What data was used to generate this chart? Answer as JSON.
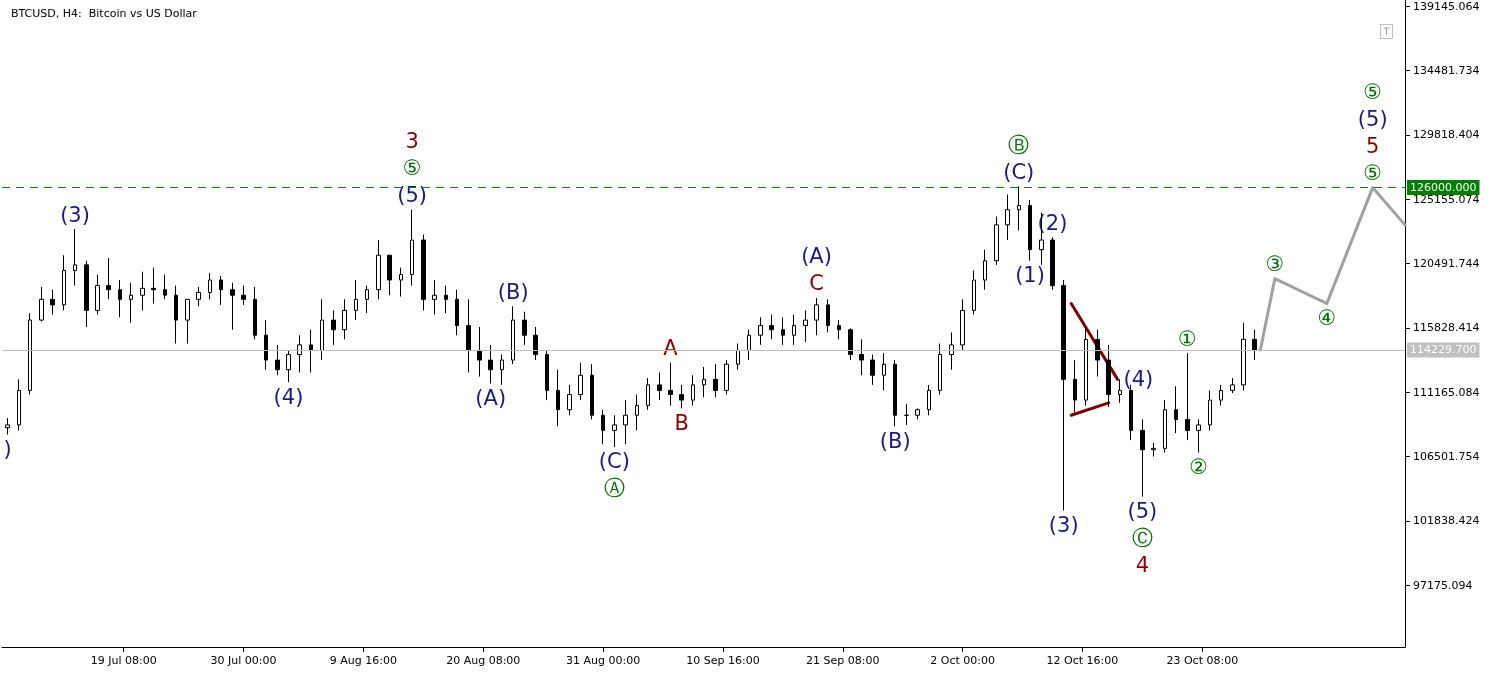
{
  "chart_data": {
    "type": "candlestick",
    "title": "BTCUSD, H4:  Bitcoin vs US Dollar",
    "xlim": [
      "--07-08T12:00",
      "--11-10T09:00"
    ],
    "xticks": [
      {
        "value": "--07-19T08:00",
        "label": "19 Jul 08:00"
      },
      {
        "value": "--07-30T00:00",
        "label": "30 Jul 00:00"
      },
      {
        "value": "--08-09T16:00",
        "label": "9 Aug 16:00"
      },
      {
        "value": "--08-20T08:00",
        "label": "20 Aug 08:00"
      },
      {
        "value": "--08-31T00:00",
        "label": "31 Aug 00:00"
      },
      {
        "value": "--09-10T16:00",
        "label": "10 Sep 16:00"
      },
      {
        "value": "--09-21T08:00",
        "label": "21 Sep 08:00"
      },
      {
        "value": "--10-02T00:00",
        "label": "2 Oct 00:00"
      },
      {
        "value": "--10-12T16:00",
        "label": "12 Oct 16:00"
      },
      {
        "value": "--10-23T08:00",
        "label": "23 Oct 08:00"
      }
    ],
    "ylim": [
      92700,
      139600
    ],
    "yticks": [
      97175.094,
      101838.424,
      106501.754,
      111165.084,
      115828.414,
      120491.744,
      125155.074,
      129818.404,
      134481.734,
      139145.064
    ],
    "marker": "none",
    "series": [
      {
        "color": "#000000",
        "x": [
          "--07-09",
          "--07-10",
          "--07-11",
          "--07-12",
          "--07-13",
          "--07-14",
          "--07-15",
          "--07-16",
          "--07-17",
          "--07-18",
          "--07-19",
          "--07-20",
          "--07-21",
          "--07-22",
          "--07-23",
          "--07-24",
          "--07-25",
          "--07-26",
          "--07-27",
          "--07-28",
          "--07-29",
          "--07-30",
          "--07-31",
          "--08-01",
          "--08-02",
          "--08-03",
          "--08-04",
          "--08-05",
          "--08-06",
          "--08-07",
          "--08-08",
          "--08-09",
          "--08-10",
          "--08-11",
          "--08-12",
          "--08-13",
          "--08-14",
          "--08-15",
          "--08-16",
          "--08-17",
          "--08-18",
          "--08-19",
          "--08-20",
          "--08-21",
          "--08-22",
          "--08-23",
          "--08-24",
          "--08-25",
          "--08-26",
          "--08-27",
          "--08-28",
          "--08-29",
          "--08-30",
          "--08-31",
          "--09-01",
          "--09-02",
          "--09-03",
          "--09-04",
          "--09-05",
          "--09-06",
          "--09-07",
          "--09-08",
          "--09-09",
          "--09-10",
          "--09-11",
          "--09-12",
          "--09-13",
          "--09-14",
          "--09-15",
          "--09-16",
          "--09-17",
          "--09-18",
          "--09-19",
          "--09-20",
          "--09-21",
          "--09-22",
          "--09-23",
          "--09-24",
          "--09-25",
          "--09-26",
          "--09-27",
          "--09-28",
          "--09-29",
          "--09-30",
          "--10-01",
          "--10-02",
          "--10-03",
          "--10-04",
          "--10-05",
          "--10-06",
          "--10-07",
          "--10-08",
          "--10-09",
          "--10-10",
          "--10-11",
          "--10-12",
          "--10-13",
          "--10-14",
          "--10-15",
          "--10-16",
          "--10-17",
          "--10-18",
          "--10-19",
          "--10-20",
          "--10-21",
          "--10-22",
          "--10-23",
          "--10-24",
          "--10-25",
          "--10-26",
          "--10-27",
          "--10-28"
        ],
        "ohlc": [
          [
            108600,
            109300,
            108100,
            108800
          ],
          [
            108800,
            112100,
            108400,
            111300
          ],
          [
            111300,
            116900,
            111000,
            116400
          ],
          [
            116400,
            118800,
            116300,
            117900
          ],
          [
            117900,
            118600,
            116800,
            117500
          ],
          [
            117500,
            121100,
            117100,
            120000
          ],
          [
            120000,
            123000,
            118900,
            120400
          ],
          [
            120400,
            120700,
            115900,
            117100
          ],
          [
            117100,
            119700,
            116800,
            118900
          ],
          [
            118900,
            120900,
            117900,
            118600
          ],
          [
            118600,
            119300,
            116600,
            117900
          ],
          [
            117900,
            119100,
            116200,
            118200
          ],
          [
            118200,
            119900,
            117100,
            118700
          ],
          [
            118700,
            120200,
            117600,
            118600
          ],
          [
            118600,
            119700,
            117900,
            118200
          ],
          [
            118200,
            118900,
            114700,
            116400
          ],
          [
            116400,
            117900,
            114700,
            117900
          ],
          [
            117900,
            118800,
            117400,
            118400
          ],
          [
            118400,
            119800,
            117900,
            119300
          ],
          [
            119300,
            119600,
            117500,
            118600
          ],
          [
            118600,
            119100,
            115700,
            118200
          ],
          [
            118200,
            118900,
            117500,
            117900
          ],
          [
            117900,
            118800,
            115000,
            115300
          ],
          [
            115300,
            116400,
            112800,
            113500
          ],
          [
            113500,
            114600,
            112400,
            112800
          ],
          [
            112800,
            114200,
            111900,
            113900
          ],
          [
            113900,
            115300,
            112600,
            114600
          ],
          [
            114600,
            115700,
            112600,
            114200
          ],
          [
            114200,
            117900,
            113500,
            116400
          ],
          [
            116400,
            117100,
            114600,
            115700
          ],
          [
            115700,
            117900,
            115000,
            117100
          ],
          [
            117100,
            119300,
            116400,
            117900
          ],
          [
            117900,
            118900,
            116900,
            118600
          ],
          [
            118600,
            122200,
            117900,
            121100
          ],
          [
            121100,
            121100,
            118200,
            119300
          ],
          [
            119300,
            120200,
            118100,
            119700
          ],
          [
            119700,
            124400,
            118900,
            122200
          ],
          [
            122200,
            122600,
            117100,
            117900
          ],
          [
            117900,
            119300,
            116800,
            118200
          ],
          [
            118200,
            118900,
            116900,
            117900
          ],
          [
            117900,
            118600,
            115300,
            116000
          ],
          [
            116000,
            117900,
            112600,
            114200
          ],
          [
            114200,
            115900,
            112300,
            113500
          ],
          [
            113500,
            114600,
            111800,
            112800
          ],
          [
            112800,
            113900,
            111700,
            113500
          ],
          [
            113500,
            117400,
            113200,
            116400
          ],
          [
            116400,
            117000,
            114600,
            115300
          ],
          [
            115300,
            115900,
            113500,
            113900
          ],
          [
            113900,
            114200,
            110600,
            111300
          ],
          [
            111300,
            112800,
            108700,
            109900
          ],
          [
            109900,
            111700,
            109500,
            111000
          ],
          [
            111000,
            113300,
            110600,
            112400
          ],
          [
            112400,
            113200,
            109200,
            109500
          ],
          [
            109500,
            109900,
            107400,
            108400
          ],
          [
            108400,
            109500,
            107200,
            108800
          ],
          [
            108800,
            110600,
            107400,
            109500
          ],
          [
            109500,
            111000,
            108400,
            110200
          ],
          [
            110200,
            112200,
            109900,
            111700
          ],
          [
            111700,
            112600,
            110600,
            111300
          ],
          [
            111300,
            113300,
            110200,
            111000
          ],
          [
            111000,
            111700,
            110000,
            110600
          ],
          [
            110600,
            112400,
            110200,
            111700
          ],
          [
            111700,
            113000,
            110800,
            112100
          ],
          [
            112100,
            113200,
            110800,
            111300
          ],
          [
            111300,
            113500,
            111000,
            113200
          ],
          [
            113200,
            114700,
            112800,
            114200
          ],
          [
            114200,
            115700,
            113500,
            115300
          ],
          [
            115300,
            116600,
            114600,
            116000
          ],
          [
            116000,
            116800,
            115000,
            115700
          ],
          [
            115700,
            116600,
            114600,
            115300
          ],
          [
            115300,
            116800,
            114600,
            116000
          ],
          [
            116000,
            117100,
            114800,
            116400
          ],
          [
            116400,
            118000,
            115300,
            117500
          ],
          [
            117500,
            117900,
            115500,
            116000
          ],
          [
            116000,
            116400,
            115000,
            115700
          ],
          [
            115700,
            115800,
            113500,
            113900
          ],
          [
            113900,
            115000,
            112400,
            113500
          ],
          [
            113500,
            113900,
            111700,
            112400
          ],
          [
            112400,
            114000,
            111300,
            113200
          ],
          [
            113200,
            113500,
            108700,
            109500
          ],
          [
            109500,
            110300,
            108800,
            109500
          ],
          [
            109500,
            110000,
            109200,
            109900
          ],
          [
            109900,
            111700,
            109500,
            111300
          ],
          [
            111300,
            114700,
            111000,
            113900
          ],
          [
            113900,
            115500,
            112800,
            114600
          ],
          [
            114600,
            117900,
            114200,
            117100
          ],
          [
            117100,
            120000,
            116800,
            119300
          ],
          [
            119300,
            121500,
            118600,
            120700
          ],
          [
            120700,
            123900,
            120400,
            123300
          ],
          [
            123300,
            125500,
            122200,
            124400
          ],
          [
            124400,
            126100,
            122900,
            124700
          ],
          [
            124700,
            125100,
            120700,
            121500
          ],
          [
            121500,
            124200,
            120400,
            122200
          ],
          [
            122200,
            122400,
            118600,
            118900
          ],
          [
            118900,
            119300,
            102600,
            112100
          ],
          [
            112100,
            113500,
            109700,
            110600
          ],
          [
            110600,
            115900,
            110200,
            115000
          ],
          [
            115000,
            115700,
            112300,
            113500
          ],
          [
            113500,
            114600,
            110100,
            111000
          ],
          [
            111000,
            112100,
            110400,
            111300
          ],
          [
            111300,
            111700,
            107700,
            108400
          ],
          [
            108400,
            109200,
            103600,
            107000
          ],
          [
            107000,
            107500,
            106500,
            107100
          ],
          [
            107100,
            110600,
            106800,
            109900
          ],
          [
            109900,
            111600,
            108200,
            109200
          ],
          [
            109200,
            114000,
            107700,
            108400
          ],
          [
            108400,
            109200,
            106800,
            108800
          ],
          [
            108800,
            111300,
            108400,
            110600
          ],
          [
            110600,
            111700,
            110200,
            111300
          ],
          [
            111300,
            112200,
            111100,
            111700
          ],
          [
            111700,
            116200,
            111300,
            115000
          ],
          [
            115000,
            115700,
            113500,
            114200
          ]
        ]
      },
      {
        "type": "line",
        "color": "#a0a0a0",
        "x": [
          "--10-28T12:00",
          "--10-29T19:00",
          "--11-03T10:00",
          "--11-07T12:00",
          "--11-10T09:00"
        ],
        "values": [
          114230,
          119400,
          117600,
          126000,
          123300
        ]
      },
      {
        "type": "line",
        "color": "#800000",
        "x": [
          "--10-11T16:00",
          "--10-15T19:00"
        ],
        "values": [
          117600,
          112100
        ]
      },
      {
        "type": "line",
        "color": "#800000",
        "x": [
          "--10-11T16:00",
          "--10-15T00:00"
        ],
        "values": [
          109500,
          110400
        ]
      }
    ],
    "ref_lines": [
      {
        "axis": "y",
        "value": 126000,
        "label": "126000.000",
        "color": "#008000",
        "line_style": "dashed"
      },
      {
        "axis": "y",
        "value": 114229.7,
        "label": "114229.700",
        "color": "#c0c0c0",
        "line_style": "solid"
      }
    ],
    "annotations": [
      {
        "text": ")",
        "x": "--07-09",
        "y": 108100
      },
      {
        "text": "(3)",
        "x": "--07-15",
        "y": 123000
      },
      {
        "text": "(5)",
        "x": "--08-14",
        "y": 124400
      },
      {
        "text": "⑤",
        "x": "--08-14",
        "y": 124400
      },
      {
        "text": "3",
        "x": "--08-14",
        "y": 124400
      },
      {
        "text": "(4)",
        "x": "--08-03",
        "y": 111900
      },
      {
        "text": "(B)",
        "x": "--08-23",
        "y": 117400
      },
      {
        "text": "(A)",
        "x": "--08-21",
        "y": 111800
      },
      {
        "text": "(C)",
        "x": "--09-01",
        "y": 107200
      },
      {
        "text": "Ⓐ",
        "x": "--09-01",
        "y": 107200
      },
      {
        "text": "A",
        "x": "--09-06",
        "y": 113300
      },
      {
        "text": "B",
        "x": "--09-07",
        "y": 110000
      },
      {
        "text": "C",
        "x": "--09-19",
        "y": 118000
      },
      {
        "text": "(A)",
        "x": "--09-19",
        "y": 118000
      },
      {
        "text": "(B)",
        "x": "--09-26",
        "y": 108700
      },
      {
        "text": "(C)",
        "x": "--10-07",
        "y": 126100
      },
      {
        "text": "Ⓑ",
        "x": "--10-07",
        "y": 126100
      },
      {
        "text": "(2)",
        "x": "--10-10",
        "y": 122400
      },
      {
        "text": "(1)",
        "x": "--10-08",
        "y": 120700
      },
      {
        "text": "(3)",
        "x": "--10-11",
        "y": 102600
      },
      {
        "text": "(4)",
        "x": "--10-15T19:00",
        "y": 112100
      },
      {
        "text": "(5)",
        "x": "--10-18",
        "y": 103600
      },
      {
        "text": "Ⓒ",
        "x": "--10-18",
        "y": 103600
      },
      {
        "text": "4",
        "x": "--10-18",
        "y": 103600
      },
      {
        "text": "①",
        "x": "--10-22",
        "y": 114000
      },
      {
        "text": "②",
        "x": "--10-23",
        "y": 106800
      },
      {
        "text": "③",
        "x": "--10-29T19:00",
        "y": 119400
      },
      {
        "text": "④",
        "x": "--11-03T10:00",
        "y": 117600
      },
      {
        "text": "⑤",
        "x": "--11-07T12:00",
        "y": 126000
      },
      {
        "text": "5",
        "x": "--11-07T12:00",
        "y": 126000
      },
      {
        "text": "(5)",
        "x": "--11-07T12:00",
        "y": 126000
      },
      "⑤"
    ]
  }
}
